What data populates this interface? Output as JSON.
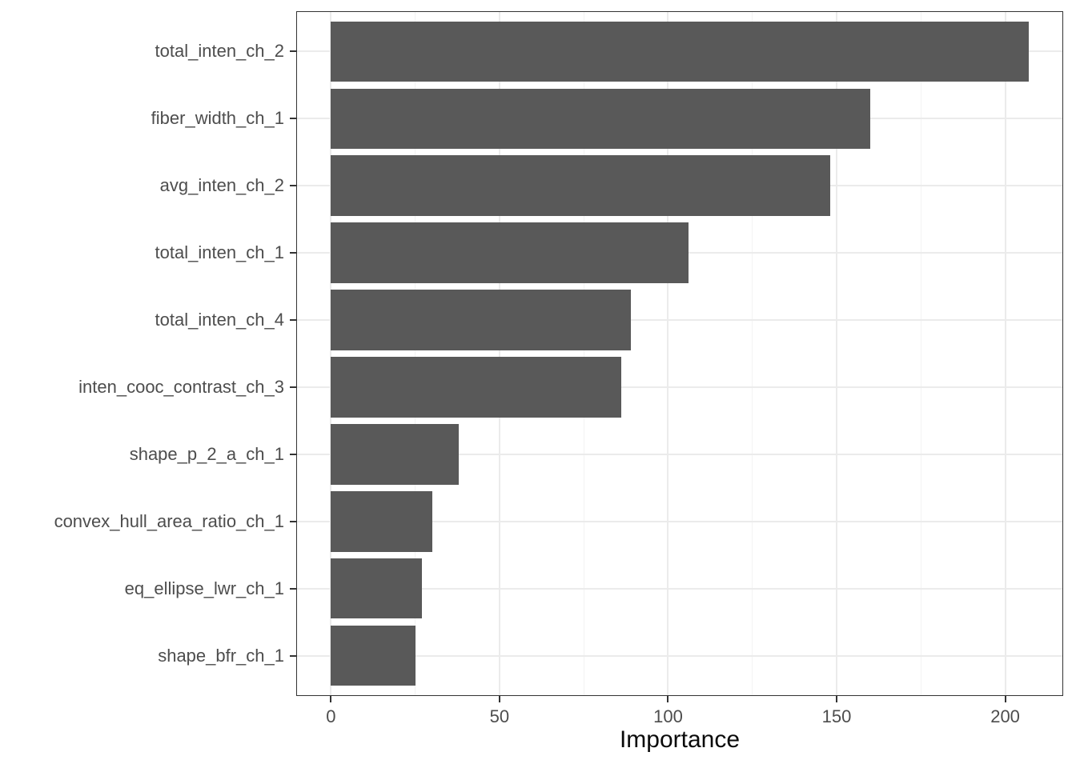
{
  "chart_data": {
    "type": "bar",
    "orientation": "horizontal",
    "title": "",
    "xlabel": "Importance",
    "ylabel": "",
    "categories": [
      "total_inten_ch_2",
      "fiber_width_ch_1",
      "avg_inten_ch_2",
      "total_inten_ch_1",
      "total_inten_ch_4",
      "inten_cooc_contrast_ch_3",
      "shape_p_2_a_ch_1",
      "convex_hull_area_ratio_ch_1",
      "eq_ellipse_lwr_ch_1",
      "shape_bfr_ch_1"
    ],
    "values": [
      207,
      160,
      148,
      106,
      89,
      86,
      38,
      30,
      27,
      25
    ],
    "x_ticks": [
      0,
      50,
      100,
      150,
      200
    ],
    "x_minor_ticks": [
      25,
      75,
      125,
      175
    ],
    "xlim": [
      -10.3,
      217.2
    ],
    "bar_rel_height": 0.9,
    "grid": "major-vertical-horizontal-minor-vertical",
    "legend": "none",
    "colors": {
      "bar": "#595959",
      "grid_major": "#EBEBEB",
      "grid_minor": "#F3F3F3",
      "panel_border": "#333333",
      "tick": "#333333",
      "tick_label": "#4D4D4D",
      "axis_title": "#0A0A0A",
      "background": "#FFFFFF"
    }
  }
}
